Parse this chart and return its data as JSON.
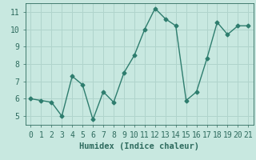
{
  "x": [
    0,
    1,
    2,
    3,
    4,
    5,
    6,
    7,
    8,
    9,
    10,
    11,
    12,
    13,
    14,
    15,
    16,
    17,
    18,
    19,
    20,
    21
  ],
  "y": [
    6.0,
    5.9,
    5.8,
    5.0,
    7.3,
    6.8,
    4.8,
    6.4,
    5.8,
    7.5,
    8.5,
    10.0,
    11.2,
    10.6,
    10.2,
    5.9,
    6.4,
    8.3,
    10.4,
    9.7,
    10.2,
    10.2
  ],
  "line_color": "#2e7d6e",
  "marker": "D",
  "marker_size": 2.5,
  "bg_color": "#c8e8e0",
  "grid_color": "#b0d4cc",
  "xlabel": "Humidex (Indice chaleur)",
  "xlim": [
    -0.5,
    21.5
  ],
  "ylim": [
    4.5,
    11.5
  ],
  "xticks": [
    0,
    1,
    2,
    3,
    4,
    5,
    6,
    7,
    8,
    9,
    10,
    11,
    12,
    13,
    14,
    15,
    16,
    17,
    18,
    19,
    20,
    21
  ],
  "yticks": [
    5,
    6,
    7,
    8,
    9,
    10,
    11
  ],
  "xlabel_fontsize": 7.5,
  "tick_fontsize": 7,
  "line_width": 1.0,
  "text_color": "#2e6b5e"
}
